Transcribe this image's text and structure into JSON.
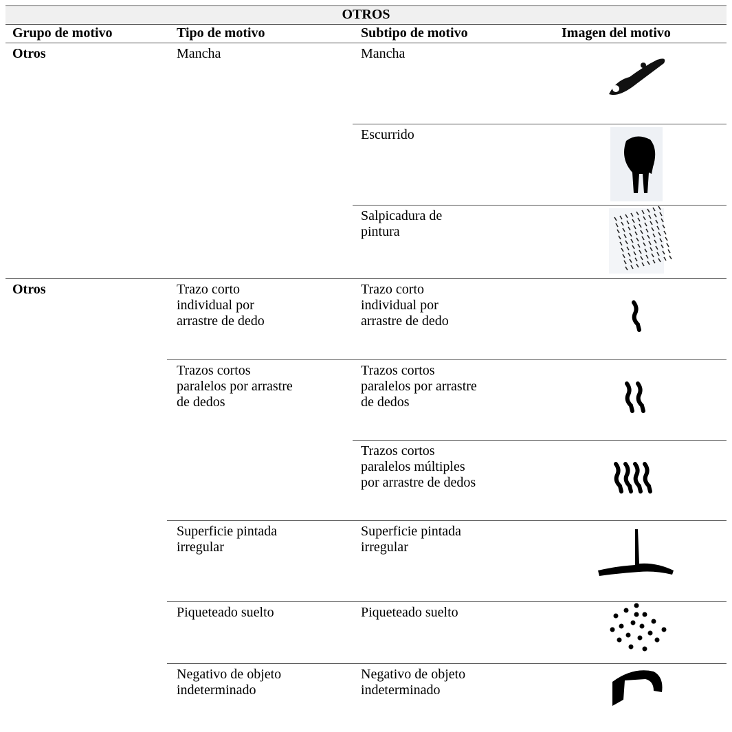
{
  "table": {
    "title": "OTROS",
    "headers": [
      "Grupo de motivo",
      "Tipo de motivo",
      "Subtipo de motivo",
      "Imagen del motivo"
    ],
    "groups": [
      {
        "group": "Otros",
        "types": [
          {
            "type": "Mancha",
            "subtypes": [
              "Mancha",
              "Escurrido",
              "Salpicadura de\npintura"
            ]
          }
        ]
      },
      {
        "group": "Otros",
        "types": [
          {
            "type": "Trazo corto\nindividual por\narrastre de dedo",
            "subtypes": [
              "Trazo corto\nindividual por\narrastre de dedo"
            ]
          },
          {
            "type": "Trazos cortos\nparalelos por arrastre\nde dedos",
            "subtypes": [
              "Trazos cortos\nparalelos por arrastre\nde dedos",
              "Trazos cortos\nparalelos múltiples\npor arrastre de dedos"
            ]
          },
          {
            "type": "Superficie pintada\nirregular",
            "subtypes": [
              "Superficie pintada\nirregular"
            ]
          },
          {
            "type": "Piqueteado suelto",
            "subtypes": [
              "Piqueteado suelto"
            ]
          },
          {
            "type": "Negativo de objeto\nindeterminado",
            "subtypes": [
              "Negativo de objeto\nindeterminado"
            ]
          }
        ]
      }
    ]
  }
}
